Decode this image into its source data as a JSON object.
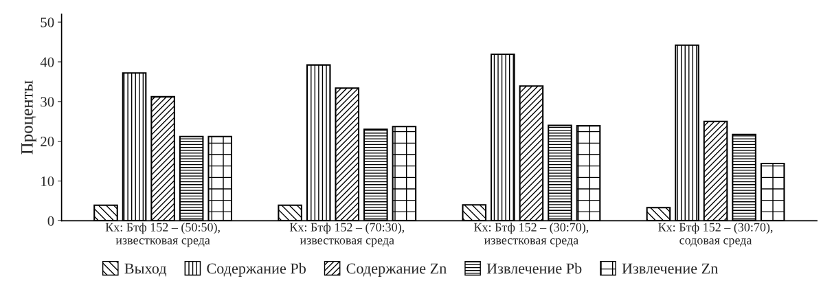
{
  "chart_data": {
    "type": "bar",
    "ylabel": "Проценты",
    "categories": [
      "Кх: Бтф 152 – (50:50),\nизвестковая среда",
      "Кх: Бтф 152 – (70:30),\nизвестковая среда",
      "Кх: Бтф 152 – (30:70),\nизвестковая среда",
      "Кх: Бтф 152 – (30:70),\nсодовая среда"
    ],
    "series": [
      {
        "name": "Выход",
        "color": "#000000",
        "values": [
          3.9,
          3.9,
          4.0,
          3.3
        ]
      },
      {
        "name": "Содержание Pb",
        "color": "#000000",
        "values": [
          37.2,
          39.2,
          41.9,
          44.2
        ]
      },
      {
        "name": "Содержание Zn",
        "color": "#000000",
        "values": [
          31.2,
          33.4,
          33.9,
          25.0
        ]
      },
      {
        "name": "Извлечение Pb",
        "color": "#000000",
        "values": [
          21.2,
          23.0,
          24.0,
          21.7
        ]
      },
      {
        "name": "Извлечение Zn",
        "color": "#000000",
        "values": [
          21.2,
          23.7,
          23.9,
          14.4
        ]
      }
    ],
    "ylim": [
      0,
      52
    ],
    "yticks": [
      0,
      10,
      20,
      30,
      40,
      50
    ],
    "grid": false,
    "legend": "bottom"
  }
}
